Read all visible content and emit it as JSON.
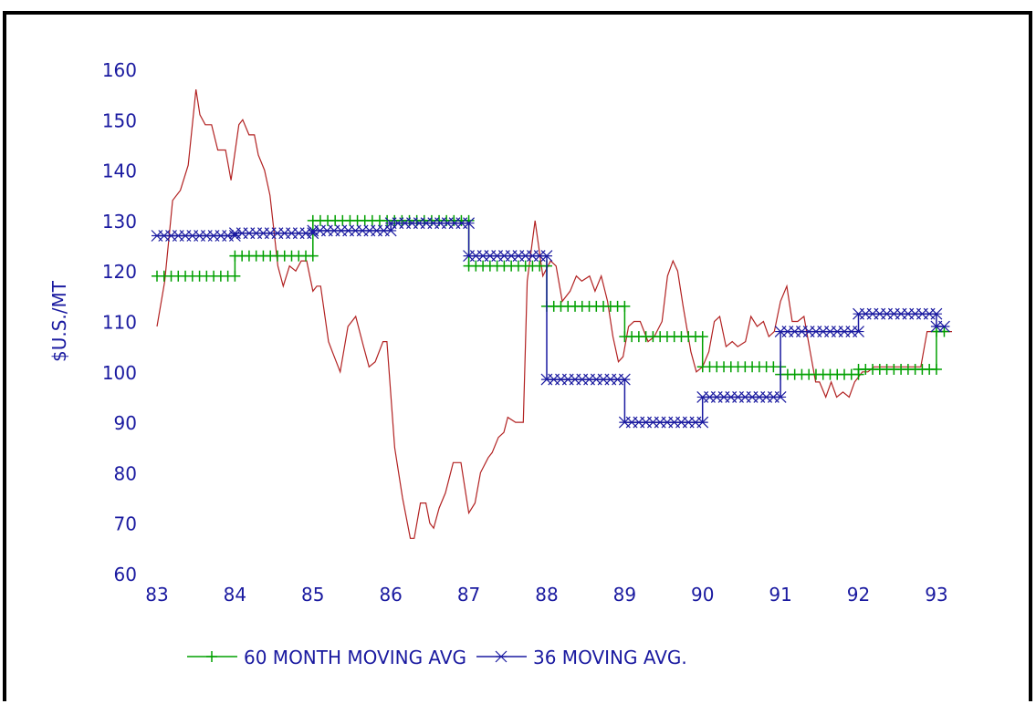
{
  "chart_data": {
    "type": "line",
    "title": "",
    "xlabel": "",
    "ylabel": "$U.S./MT",
    "xlim": [
      83,
      93.2
    ],
    "ylim": [
      60,
      160
    ],
    "x_ticks": [
      "83",
      "84",
      "85",
      "86",
      "87",
      "88",
      "89",
      "90",
      "91",
      "92",
      "93"
    ],
    "y_ticks": [
      "60",
      "70",
      "80",
      "90",
      "100",
      "110",
      "120",
      "130",
      "140",
      "150",
      "160"
    ],
    "grid": false,
    "legend_position": "bottom",
    "series": [
      {
        "name": "",
        "color": "#b22222",
        "marker": "none",
        "x": [
          83.0,
          83.1,
          83.2,
          83.3,
          83.4,
          83.5,
          83.55,
          83.62,
          83.7,
          83.78,
          83.88,
          83.95,
          84.05,
          84.1,
          84.18,
          84.25,
          84.3,
          84.38,
          84.45,
          84.55,
          84.62,
          84.7,
          84.78,
          84.85,
          84.92,
          85.0,
          85.05,
          85.1,
          85.2,
          85.25,
          85.35,
          85.45,
          85.55,
          85.65,
          85.72,
          85.8,
          85.9,
          85.95,
          86.05,
          86.15,
          86.25,
          86.3,
          86.38,
          86.45,
          86.5,
          86.55,
          86.62,
          86.7,
          86.8,
          86.9,
          86.95,
          87.0,
          87.08,
          87.15,
          87.25,
          87.3,
          87.38,
          87.45,
          87.5,
          87.6,
          87.7,
          87.75,
          87.85,
          87.95,
          88.05,
          88.12,
          88.2,
          88.3,
          88.38,
          88.45,
          88.55,
          88.62,
          88.7,
          88.78,
          88.85,
          88.92,
          88.98,
          89.05,
          89.12,
          89.2,
          89.3,
          89.38,
          89.48,
          89.55,
          89.62,
          89.68,
          89.75,
          89.85,
          89.92,
          90.0,
          90.08,
          90.15,
          90.22,
          90.3,
          90.38,
          90.45,
          90.55,
          90.62,
          90.7,
          90.78,
          90.85,
          90.92,
          91.0,
          91.08,
          91.15,
          91.22,
          91.3,
          91.38,
          91.45,
          91.5,
          91.58,
          91.65,
          91.72,
          91.8,
          91.88,
          91.95,
          92.05,
          92.12,
          92.2,
          92.28,
          92.35,
          92.42,
          92.5,
          92.58,
          92.65,
          92.72,
          92.8,
          92.88,
          92.95,
          93.02,
          93.1,
          93.2
        ],
        "y": [
          109,
          118,
          134,
          136,
          141,
          156,
          151,
          149,
          149,
          144,
          144,
          138,
          149,
          150,
          147,
          147,
          143,
          140,
          135,
          121,
          117,
          121,
          120,
          122,
          122,
          116,
          117,
          117,
          106,
          104,
          100,
          109,
          111,
          105,
          101,
          102,
          106,
          106,
          85,
          75,
          67,
          67,
          74,
          74,
          70,
          69,
          73,
          76,
          82,
          82,
          77,
          72,
          74,
          80,
          83,
          84,
          87,
          88,
          91,
          90,
          90,
          118,
          130,
          119,
          122,
          121,
          114,
          116,
          119,
          118,
          119,
          116,
          119,
          114,
          107,
          102,
          103,
          109,
          110,
          110,
          106,
          107,
          110,
          119,
          122,
          120,
          113,
          104,
          100,
          101,
          104,
          110,
          111,
          105,
          106,
          105,
          106,
          111,
          109,
          110,
          107,
          108,
          114,
          117,
          110,
          110,
          111,
          104,
          98,
          98,
          95,
          98,
          95,
          96,
          95,
          98,
          100,
          100,
          101,
          101,
          101,
          101,
          101,
          101,
          101,
          101,
          101,
          108,
          108,
          108,
          108,
          108
        ]
      },
      {
        "name": "60 MONTH MOVING AVG",
        "color": "#00a000",
        "marker": "+",
        "x": [
          83.0,
          84.0,
          84.0,
          85.0,
          85.0,
          87.0,
          87.0,
          88.0,
          88.0,
          89.0,
          89.0,
          90.0,
          90.0,
          91.0,
          91.0,
          92.0,
          92.0,
          93.0,
          93.0,
          93.1
        ],
        "y": [
          119,
          119,
          123,
          123,
          130,
          130,
          121,
          121,
          113,
          113,
          107,
          107,
          101,
          101,
          99.5,
          99.5,
          100.5,
          100.5,
          108,
          108
        ]
      },
      {
        "name": "36 MOVING AVG.",
        "color": "#1a1aa0",
        "marker": "*",
        "x": [
          83.0,
          84.0,
          84.0,
          85.0,
          85.0,
          86.0,
          86.0,
          87.0,
          87.0,
          88.0,
          88.0,
          89.0,
          89.0,
          90.0,
          90.0,
          91.0,
          91.0,
          92.0,
          92.0,
          93.0,
          93.0,
          93.1
        ],
        "y": [
          127,
          127,
          127.5,
          127.5,
          128,
          128,
          129.5,
          129.5,
          123,
          123,
          98.5,
          98.5,
          90,
          90,
          95,
          95,
          108,
          108,
          111.5,
          111.5,
          109,
          109
        ]
      }
    ],
    "axis_color": "#1a1aa0",
    "frame_color": "#000000"
  }
}
